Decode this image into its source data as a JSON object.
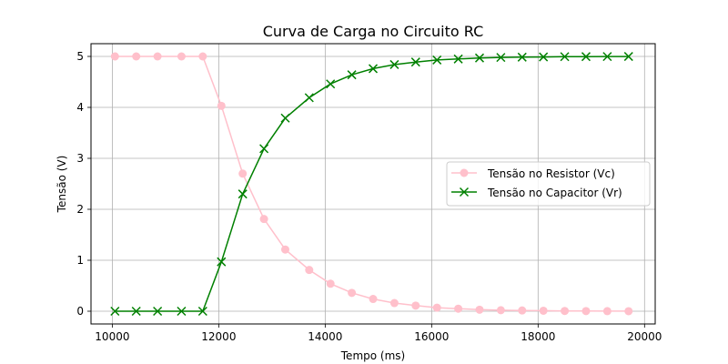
{
  "chart_data": {
    "type": "line",
    "title": "Curva de Carga no Circuito RC",
    "xlabel": "Tempo (ms)",
    "ylabel": "Tensão (V)",
    "xlim": [
      9600,
      20200
    ],
    "ylim": [
      -0.25,
      5.25
    ],
    "xticks": [
      10000,
      12000,
      14000,
      16000,
      18000,
      20000
    ],
    "yticks": [
      0,
      1,
      2,
      3,
      4,
      5
    ],
    "grid": true,
    "legend_position": "center-right",
    "x": [
      10050,
      10450,
      10850,
      11300,
      11700,
      12050,
      12450,
      12850,
      13250,
      13700,
      14100,
      14500,
      14900,
      15300,
      15700,
      16100,
      16500,
      16900,
      17300,
      17700,
      18100,
      18500,
      18900,
      19300,
      19700
    ],
    "series": [
      {
        "name": "Tensão no Resistor (Vc)",
        "color": "#ffc0cb",
        "marker": "circle",
        "values": [
          5,
          5,
          5,
          5,
          5,
          4.03,
          2.7,
          1.81,
          1.21,
          0.81,
          0.54,
          0.36,
          0.24,
          0.16,
          0.11,
          0.07,
          0.05,
          0.03,
          0.02,
          0.015,
          0.01,
          0.005,
          0.003,
          0.002,
          0.001
        ]
      },
      {
        "name": "Tensão no Capacitor (Vr)",
        "color": "#008000",
        "marker": "x",
        "values": [
          0,
          0,
          0,
          0,
          0,
          0.97,
          2.3,
          3.19,
          3.79,
          4.19,
          4.46,
          4.64,
          4.76,
          4.84,
          4.89,
          4.93,
          4.95,
          4.97,
          4.98,
          4.985,
          4.99,
          4.995,
          4.997,
          4.998,
          4.999
        ]
      }
    ]
  }
}
